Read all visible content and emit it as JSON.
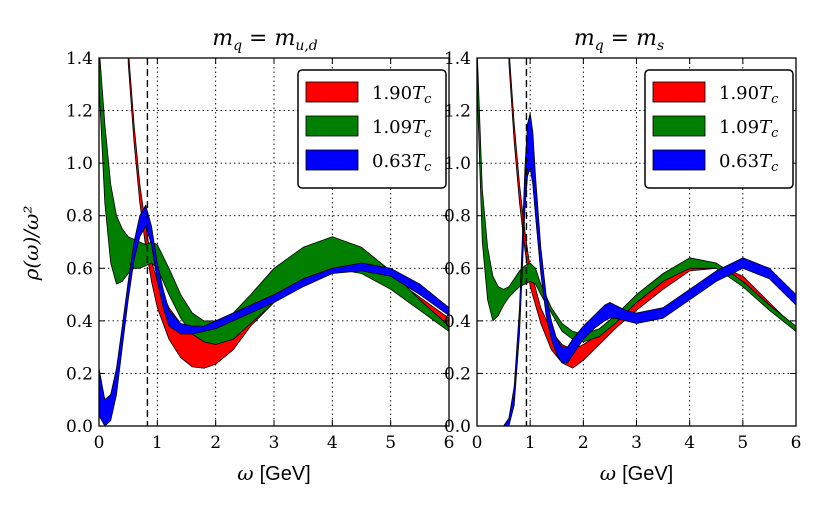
{
  "chart_data": [
    {
      "type": "area",
      "title": "m_q = m_u,d",
      "title_main": "m",
      "title_sub": "q",
      "title_eq": " = m",
      "title_sub2": "u,d",
      "xlabel_symbol": "ω",
      "xlabel_unit": "[GeV]",
      "ylabel": "ρ(ω)/ω²",
      "xlim": [
        0,
        6
      ],
      "ylim": [
        0,
        1.4
      ],
      "xticks": [
        "0",
        "1",
        "2",
        "3",
        "4",
        "5",
        "6"
      ],
      "yticks": [
        "0.0",
        "0.2",
        "0.4",
        "0.6",
        "0.8",
        "1.0",
        "1.2",
        "1.4"
      ],
      "grid": true,
      "legend_position": "top-right",
      "vline_x": 0.83,
      "series": [
        {
          "name": "1.90T_c",
          "legend_num": "1.90",
          "legend_T": "T",
          "legend_sub": "c",
          "color": "#ff0000",
          "x": [
            0.5,
            0.6,
            0.7,
            0.8,
            0.9,
            1.0,
            1.2,
            1.4,
            1.6,
            1.8,
            2.0,
            2.3,
            2.6,
            3.0,
            3.5,
            4.0,
            4.5,
            5.0,
            5.5,
            6.0
          ],
          "upper": [
            1.44,
            1.15,
            0.92,
            0.76,
            0.63,
            0.55,
            0.45,
            0.39,
            0.36,
            0.355,
            0.365,
            0.39,
            0.43,
            0.5,
            0.58,
            0.635,
            0.625,
            0.57,
            0.49,
            0.41
          ],
          "lower": [
            1.38,
            1.08,
            0.85,
            0.68,
            0.55,
            0.45,
            0.33,
            0.26,
            0.225,
            0.22,
            0.235,
            0.29,
            0.38,
            0.47,
            0.56,
            0.61,
            0.6,
            0.55,
            0.47,
            0.38
          ]
        },
        {
          "name": "1.09T_c",
          "legend_num": "1.09",
          "legend_T": "T",
          "legend_sub": "c",
          "color": "#007f00",
          "x": [
            0.0,
            0.1,
            0.2,
            0.3,
            0.4,
            0.5,
            0.6,
            0.7,
            0.8,
            0.9,
            1.0,
            1.2,
            1.4,
            1.6,
            1.8,
            2.0,
            2.3,
            2.6,
            3.0,
            3.5,
            4.0,
            4.5,
            5.0,
            5.5,
            6.0
          ],
          "upper": [
            1.45,
            1.15,
            0.92,
            0.8,
            0.75,
            0.72,
            0.71,
            0.7,
            0.69,
            0.7,
            0.69,
            0.6,
            0.5,
            0.43,
            0.4,
            0.4,
            0.43,
            0.5,
            0.6,
            0.68,
            0.72,
            0.68,
            0.59,
            0.48,
            0.38
          ],
          "lower": [
            1.3,
            0.85,
            0.62,
            0.54,
            0.55,
            0.58,
            0.6,
            0.6,
            0.61,
            0.62,
            0.6,
            0.5,
            0.41,
            0.35,
            0.32,
            0.31,
            0.33,
            0.39,
            0.47,
            0.56,
            0.6,
            0.58,
            0.52,
            0.44,
            0.36
          ]
        },
        {
          "name": "0.63T_c",
          "legend_num": "0.63",
          "legend_T": "T",
          "legend_sub": "c",
          "color": "#0000ff",
          "x": [
            0.0,
            0.1,
            0.2,
            0.3,
            0.4,
            0.5,
            0.6,
            0.7,
            0.8,
            0.9,
            1.0,
            1.1,
            1.2,
            1.4,
            1.6,
            1.8,
            2.0,
            2.5,
            3.0,
            3.5,
            4.0,
            4.5,
            5.0,
            5.5,
            6.0
          ],
          "upper": [
            0.22,
            0.1,
            0.12,
            0.22,
            0.38,
            0.55,
            0.7,
            0.8,
            0.84,
            0.76,
            0.62,
            0.52,
            0.44,
            0.39,
            0.38,
            0.38,
            0.4,
            0.45,
            0.5,
            0.56,
            0.6,
            0.62,
            0.6,
            0.54,
            0.45
          ],
          "lower": [
            0.04,
            0.0,
            0.02,
            0.12,
            0.3,
            0.48,
            0.63,
            0.72,
            0.76,
            0.69,
            0.55,
            0.45,
            0.38,
            0.35,
            0.35,
            0.36,
            0.37,
            0.42,
            0.47,
            0.53,
            0.58,
            0.59,
            0.57,
            0.5,
            0.42
          ]
        }
      ]
    },
    {
      "type": "area",
      "title": "m_q = m_s",
      "title_main": "m",
      "title_sub": "q",
      "title_eq": " = m",
      "title_sub2": "s",
      "xlabel_symbol": "ω",
      "xlabel_unit": "[GeV]",
      "ylabel": "",
      "xlim": [
        0,
        6
      ],
      "ylim": [
        0,
        1.4
      ],
      "xticks": [
        "0",
        "1",
        "2",
        "3",
        "4",
        "5",
        "6"
      ],
      "yticks": [
        "0.0",
        "0.2",
        "0.4",
        "0.6",
        "0.8",
        "1.0",
        "1.2",
        "1.4"
      ],
      "grid": true,
      "legend_position": "top-right",
      "vline_x": 0.93,
      "series": [
        {
          "name": "1.90T_c",
          "legend_num": "1.90",
          "legend_T": "T",
          "legend_sub": "c",
          "color": "#ff0000",
          "x": [
            0.6,
            0.7,
            0.8,
            0.9,
            1.0,
            1.2,
            1.4,
            1.6,
            1.8,
            2.0,
            2.3,
            2.6,
            3.0,
            3.5,
            4.0,
            4.5,
            5.0,
            5.5,
            6.0
          ],
          "upper": [
            1.44,
            1.15,
            0.92,
            0.74,
            0.6,
            0.45,
            0.36,
            0.31,
            0.29,
            0.31,
            0.35,
            0.4,
            0.47,
            0.55,
            0.62,
            0.615,
            0.57,
            0.47,
            0.37
          ],
          "lower": [
            1.38,
            1.08,
            0.85,
            0.67,
            0.53,
            0.39,
            0.29,
            0.24,
            0.22,
            0.25,
            0.31,
            0.37,
            0.44,
            0.52,
            0.59,
            0.6,
            0.55,
            0.46,
            0.36
          ]
        },
        {
          "name": "1.09T_c",
          "legend_num": "1.09",
          "legend_T": "T",
          "legend_sub": "c",
          "color": "#007f00",
          "x": [
            0.0,
            0.1,
            0.2,
            0.3,
            0.4,
            0.5,
            0.6,
            0.7,
            0.8,
            0.9,
            1.0,
            1.1,
            1.2,
            1.4,
            1.6,
            1.8,
            2.0,
            2.3,
            2.6,
            3.0,
            3.5,
            4.0,
            4.5,
            5.0,
            5.5,
            6.0
          ],
          "upper": [
            1.45,
            0.9,
            0.68,
            0.57,
            0.53,
            0.52,
            0.53,
            0.56,
            0.59,
            0.61,
            0.62,
            0.6,
            0.54,
            0.45,
            0.39,
            0.36,
            0.35,
            0.37,
            0.42,
            0.5,
            0.58,
            0.64,
            0.62,
            0.55,
            0.46,
            0.38
          ],
          "lower": [
            1.3,
            0.7,
            0.48,
            0.4,
            0.42,
            0.46,
            0.49,
            0.51,
            0.53,
            0.54,
            0.55,
            0.54,
            0.5,
            0.43,
            0.36,
            0.33,
            0.32,
            0.34,
            0.39,
            0.47,
            0.55,
            0.6,
            0.6,
            0.53,
            0.44,
            0.36
          ]
        },
        {
          "name": "0.63T_c",
          "legend_num": "0.63",
          "legend_T": "T",
          "legend_sub": "c",
          "color": "#0000ff",
          "x": [
            0.5,
            0.6,
            0.7,
            0.8,
            0.85,
            0.9,
            0.95,
            1.0,
            1.05,
            1.1,
            1.2,
            1.3,
            1.4,
            1.5,
            1.6,
            1.7,
            1.8,
            2.0,
            2.2,
            2.4,
            2.5,
            2.6,
            2.8,
            3.0,
            3.5,
            4.0,
            4.5,
            5.0,
            5.5,
            6.0
          ],
          "upper": [
            0.0,
            0.03,
            0.15,
            0.45,
            0.7,
            0.98,
            1.15,
            1.19,
            1.12,
            0.95,
            0.68,
            0.5,
            0.4,
            0.33,
            0.3,
            0.3,
            0.33,
            0.38,
            0.42,
            0.46,
            0.47,
            0.46,
            0.44,
            0.43,
            0.45,
            0.52,
            0.59,
            0.64,
            0.6,
            0.5
          ],
          "lower": [
            0.0,
            0.0,
            0.08,
            0.35,
            0.58,
            0.82,
            0.95,
            0.98,
            0.92,
            0.8,
            0.58,
            0.42,
            0.33,
            0.27,
            0.24,
            0.24,
            0.27,
            0.33,
            0.37,
            0.4,
            0.41,
            0.41,
            0.4,
            0.39,
            0.41,
            0.48,
            0.55,
            0.6,
            0.56,
            0.46
          ]
        }
      ]
    }
  ]
}
